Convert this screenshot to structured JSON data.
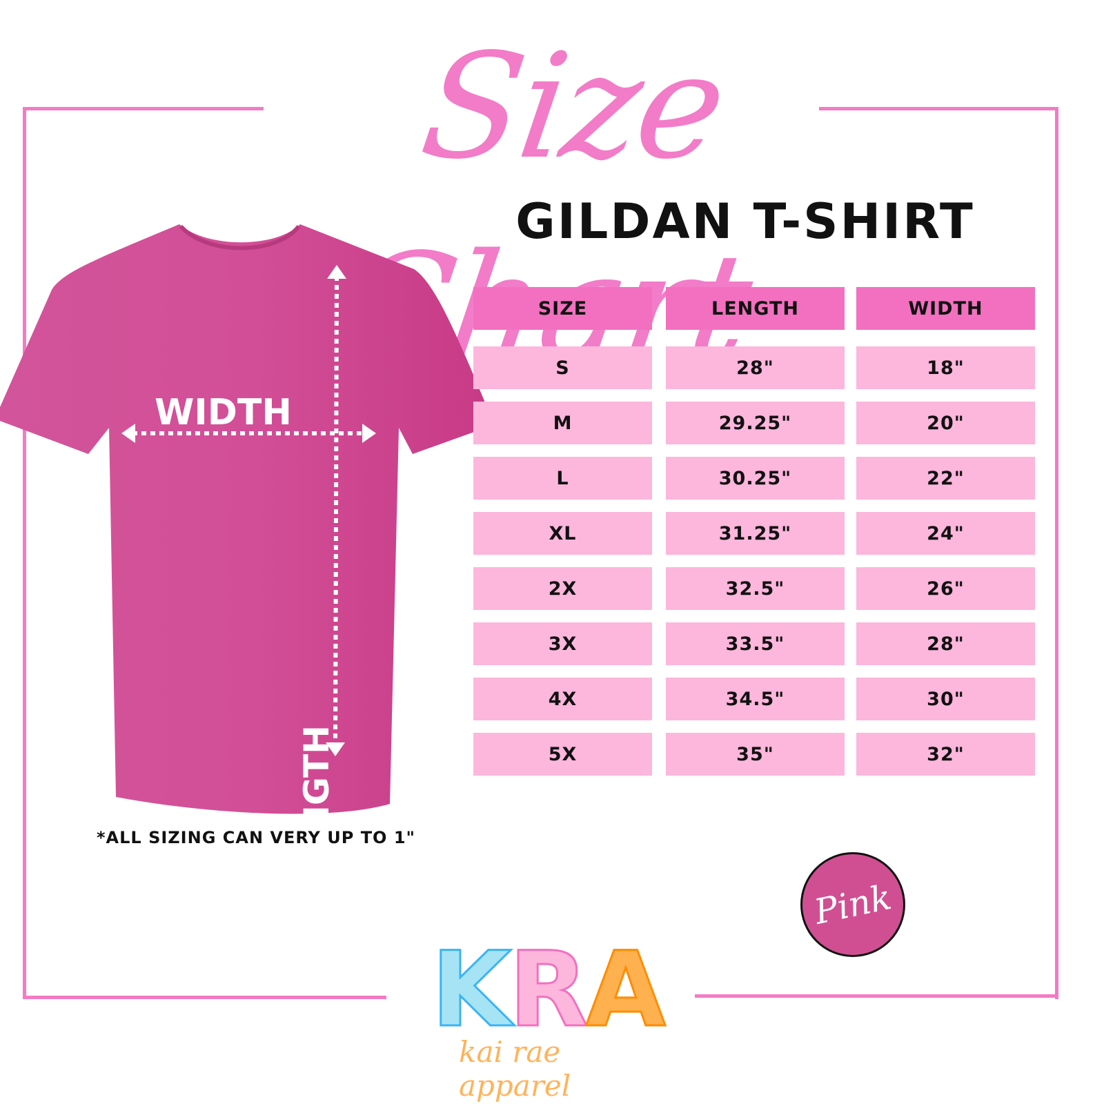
{
  "title": "Size Chart",
  "subtitle": "GILDAN T-SHIRT",
  "colors": {
    "accent": "#f47ac4",
    "header": "#f270bf",
    "cell": "#fdb6dc",
    "shirt": "#d0478f"
  },
  "shirt": {
    "width_label": "WIDTH",
    "length_label": "LENGTH",
    "color_name": "Pink"
  },
  "table": {
    "headers": [
      "SIZE",
      "LENGTH",
      "WIDTH"
    ],
    "rows": [
      [
        "S",
        "28\"",
        "18\""
      ],
      [
        "M",
        "29.25\"",
        "20\""
      ],
      [
        "L",
        "30.25\"",
        "22\""
      ],
      [
        "XL",
        "31.25\"",
        "24\""
      ],
      [
        "2X",
        "32.5\"",
        "26\""
      ],
      [
        "3X",
        "33.5\"",
        "28\""
      ],
      [
        "4X",
        "34.5\"",
        "30\""
      ],
      [
        "5X",
        "35\"",
        "32\""
      ]
    ]
  },
  "note": "*ALL SIZING CAN VERY UP TO 1\"",
  "logo": {
    "letters": [
      "K",
      "R",
      "A"
    ],
    "tagline": "kai rae apparel"
  }
}
